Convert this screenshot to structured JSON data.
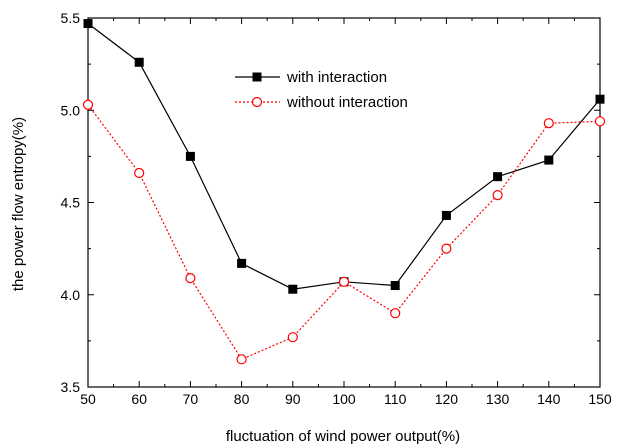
{
  "chart_data": {
    "type": "line",
    "xlabel": "fluctuation of wind power output(%)",
    "ylabel": "the power flow entropy(%)",
    "xlim": [
      50,
      150
    ],
    "ylim": [
      3.5,
      5.5
    ],
    "x_ticks": [
      "50",
      "60",
      "70",
      "80",
      "90",
      "100",
      "110",
      "120",
      "130",
      "140",
      "150"
    ],
    "y_ticks": [
      "3.5",
      "4.0",
      "4.5",
      "5.0",
      "5.5"
    ],
    "grid": false,
    "legend_position": "top-center",
    "x": [
      50,
      60,
      70,
      80,
      90,
      100,
      110,
      120,
      130,
      140,
      150
    ],
    "series": [
      {
        "name": "with interaction",
        "values": [
          5.47,
          5.26,
          4.75,
          4.17,
          4.03,
          4.07,
          4.05,
          4.43,
          4.64,
          4.73,
          5.06
        ],
        "color": "#000000",
        "marker": "filled-square",
        "line_style": "solid"
      },
      {
        "name": "without interaction",
        "values": [
          5.03,
          4.66,
          4.09,
          3.65,
          3.77,
          4.07,
          3.9,
          4.25,
          4.54,
          4.93,
          4.94
        ],
        "color": "#ff0000",
        "marker": "open-circle",
        "line_style": "dotted"
      }
    ]
  }
}
